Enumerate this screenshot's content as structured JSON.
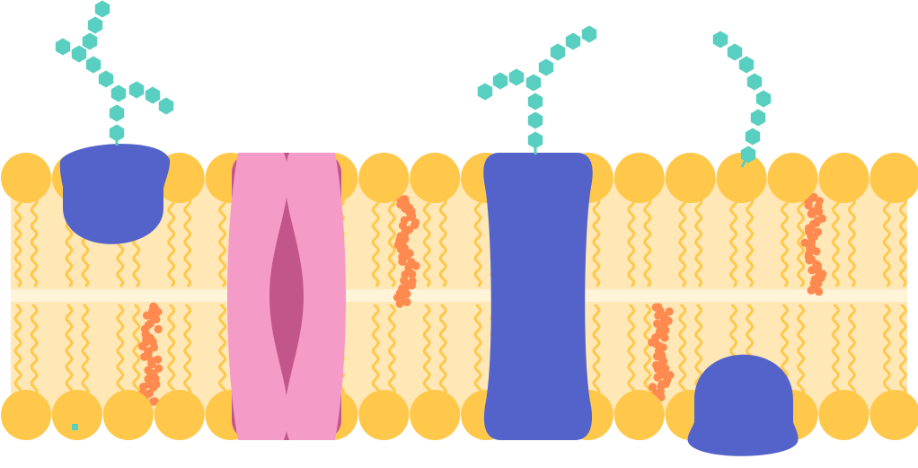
{
  "diagram": {
    "kind": "cell membrane illustration",
    "labels": [],
    "colors": {
      "background": "#ffffff",
      "membrane_fill": "#ffe7b6",
      "phospholipid_head": "#ffc84a",
      "lipid_tail": "#ffc84a",
      "cholesterol": "#ff8a4f",
      "peripheral_protein": "#5363c9",
      "channel_protein_outer": "#f59bc8",
      "channel_protein_inner": "#c2568b",
      "transmembrane_protein": "#5363c9",
      "carbohydrate_chain": "#58cfc0"
    },
    "components": {
      "phospholipid_heads_top_count": 18,
      "phospholipid_heads_bottom_count": 18,
      "cholesterol_clusters": 4,
      "proteins": [
        "peripheral-protein-top",
        "channel-protein",
        "transmembrane-protein",
        "peripheral-protein-bottom"
      ],
      "glycan_chains": [
        "glycoprotein-chain",
        "glycoprotein-chain-2",
        "glycolipid-chain"
      ]
    }
  }
}
